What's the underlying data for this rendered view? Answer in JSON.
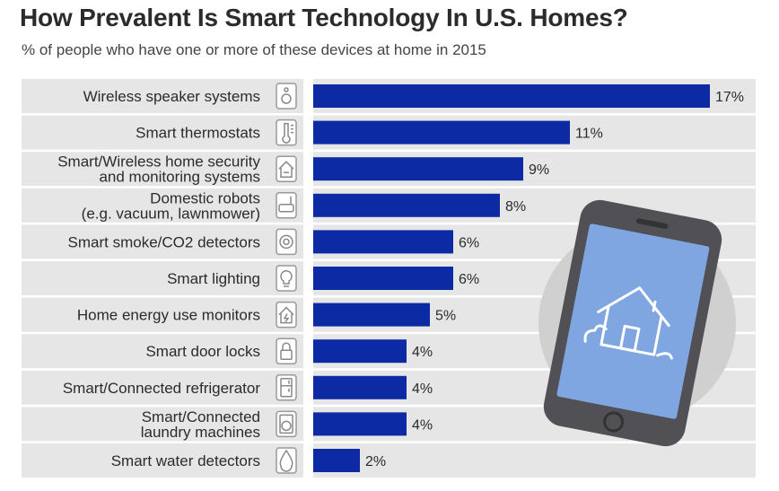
{
  "title": "How Prevalent Is Smart Technology In U.S. Homes?",
  "subtitle": "% of people who have one or more of these devices at home in 2015",
  "colors": {
    "bar": "#0b2aa3",
    "row_band": "#e6e6e6",
    "phone_circle": "#d0d0d0",
    "phone_body": "#505055",
    "phone_screen": "#7fa6e0"
  },
  "chart_data": {
    "type": "bar",
    "orientation": "horizontal",
    "unit": "%",
    "xlim": [
      0,
      17
    ],
    "categories": [
      [
        "Wireless speaker systems"
      ],
      [
        "Smart thermostats"
      ],
      [
        "Smart/Wireless home security",
        "and monitoring systems"
      ],
      [
        "Domestic robots",
        "(e.g. vacuum, lawnmower)"
      ],
      [
        "Smart smoke/CO2 detectors"
      ],
      [
        "Smart lighting"
      ],
      [
        "Home energy use monitors"
      ],
      [
        "Smart door locks"
      ],
      [
        "Smart/Connected refrigerator"
      ],
      [
        "Smart/Connected",
        "laundry machines"
      ],
      [
        "Smart water detectors"
      ]
    ],
    "values": [
      17,
      11,
      9,
      8,
      6,
      6,
      5,
      4,
      4,
      4,
      2
    ],
    "value_labels": [
      "17%",
      "11%",
      "9%",
      "8%",
      "6%",
      "6%",
      "5%",
      "4%",
      "4%",
      "4%",
      "2%"
    ],
    "icons": [
      "speaker-icon",
      "thermometer-icon",
      "home-security-icon",
      "robot-vacuum-icon",
      "smoke-detector-icon",
      "lightbulb-icon",
      "energy-monitor-icon",
      "padlock-icon",
      "refrigerator-icon",
      "washing-machine-icon",
      "water-drop-icon"
    ],
    "grid": false,
    "legend": "none"
  },
  "illustration": {
    "name": "smartphone-icon",
    "screen_icon": "smart-home-icon"
  }
}
